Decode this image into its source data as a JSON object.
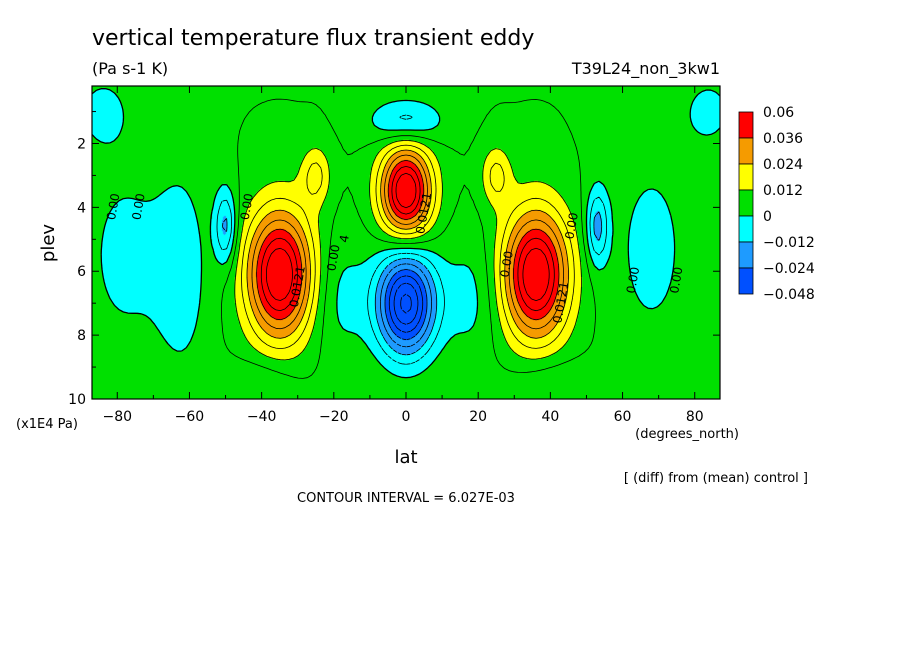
{
  "chart_data": {
    "type": "heatmap",
    "title": "vertical temperature flux transient eddy",
    "units": "(Pa s-1 K)",
    "run_label": "T39L24_non_3kw1",
    "xlabel": "lat",
    "xunits": "(degrees_north)",
    "ylabel": "plev",
    "yunits": "(x1E4 Pa)",
    "xlim": [
      -87,
      87
    ],
    "ylim": [
      10,
      0.2
    ],
    "x_ticks": [
      -80,
      -60,
      -40,
      -20,
      0,
      20,
      40,
      60,
      80
    ],
    "x_tick_labels": [
      "-80",
      "-60",
      "-40",
      "-20",
      "0",
      "20",
      "40",
      "60",
      "80"
    ],
    "y_ticks": [
      2,
      4,
      6,
      8,
      10
    ],
    "y_tick_labels": [
      "2",
      "4",
      "6",
      "8",
      "10"
    ],
    "comparison_note": "[ (diff) from (mean) control ]",
    "contour_interval_text": "CONTOUR INTERVAL = 6.027E-03",
    "colorbar": {
      "boundaries": [
        "0.06",
        "0.036",
        "0.024",
        "0.012",
        "0",
        "-0.012",
        "-0.024",
        "-0.048"
      ],
      "colors": [
        "#ff0000",
        "#f59b00",
        "#ffff00",
        "#00e000",
        "#00ffff",
        "#1e9bff",
        "#0050ff"
      ]
    },
    "contour_labels": [
      {
        "text": "0.00",
        "lat": -80,
        "p": 4.0
      },
      {
        "text": "0.00",
        "lat": -73,
        "p": 4.0
      },
      {
        "text": "0.00",
        "lat": -43,
        "p": 4.0
      },
      {
        "text": "0.0121",
        "lat": -29,
        "p": 6.5
      },
      {
        "text": "0.00",
        "lat": -19,
        "p": 5.6
      },
      {
        "text": "4",
        "lat": -16,
        "p": 5.0
      },
      {
        "text": "0.0121",
        "lat": 6,
        "p": 4.2
      },
      {
        "text": "0.00",
        "lat": 29,
        "p": 5.8
      },
      {
        "text": "0.0121",
        "lat": 44,
        "p": 7.0
      },
      {
        "text": "0.00",
        "lat": 47,
        "p": 4.6
      },
      {
        "text": "0.00",
        "lat": 64,
        "p": 6.3
      },
      {
        "text": "0.00",
        "lat": 76,
        "p": 6.3
      }
    ],
    "features": [
      {
        "lat": -35,
        "p": 6.1,
        "peak": 0.05,
        "rx": 9,
        "ry": 2.0
      },
      {
        "lat": 36,
        "p": 6.1,
        "peak": 0.05,
        "rx": 9,
        "ry": 2.0
      },
      {
        "lat": 0,
        "p": 3.5,
        "peak": 0.05,
        "rx": 7,
        "ry": 1.4
      },
      {
        "lat": 0,
        "p": 7.0,
        "peak": -0.05,
        "rx": 8,
        "ry": 1.6
      },
      {
        "lat": 0,
        "p": 1.3,
        "peak": -0.016,
        "rx": 10,
        "ry": 0.7
      },
      {
        "lat": -50,
        "p": 4.6,
        "peak": -0.02,
        "rx": 3,
        "ry": 1.2
      },
      {
        "lat": 53,
        "p": 4.6,
        "peak": -0.02,
        "rx": 3,
        "ry": 1.2
      },
      {
        "lat": -25,
        "p": 3.0,
        "peak": 0.014,
        "rx": 4,
        "ry": 0.9
      },
      {
        "lat": 25,
        "p": 3.0,
        "peak": 0.014,
        "rx": 4,
        "ry": 0.9
      },
      {
        "lat": -78,
        "p": 5.5,
        "peak": -0.008,
        "rx": 12,
        "ry": 3.2
      },
      {
        "lat": -62,
        "p": 6.0,
        "peak": -0.009,
        "rx": 8,
        "ry": 3.5
      },
      {
        "lat": 68,
        "p": 5.3,
        "peak": -0.008,
        "rx": 12,
        "ry": 3.5
      },
      {
        "lat": -18,
        "p": 6.8,
        "peak": -0.008,
        "rx": 8,
        "ry": 2.0
      },
      {
        "lat": 18,
        "p": 6.8,
        "peak": -0.008,
        "rx": 8,
        "ry": 2.0
      },
      {
        "lat": -84,
        "p": 1.0,
        "peak": -0.008,
        "rx": 8,
        "ry": 1.2
      },
      {
        "lat": 84,
        "p": 1.0,
        "peak": -0.008,
        "rx": 8,
        "ry": 1.2
      },
      {
        "lat": -40,
        "p": 9.5,
        "peak": -0.007,
        "rx": 10,
        "ry": 0.8
      },
      {
        "lat": 40,
        "p": 9.5,
        "peak": -0.007,
        "rx": 12,
        "ry": 0.8
      }
    ]
  }
}
